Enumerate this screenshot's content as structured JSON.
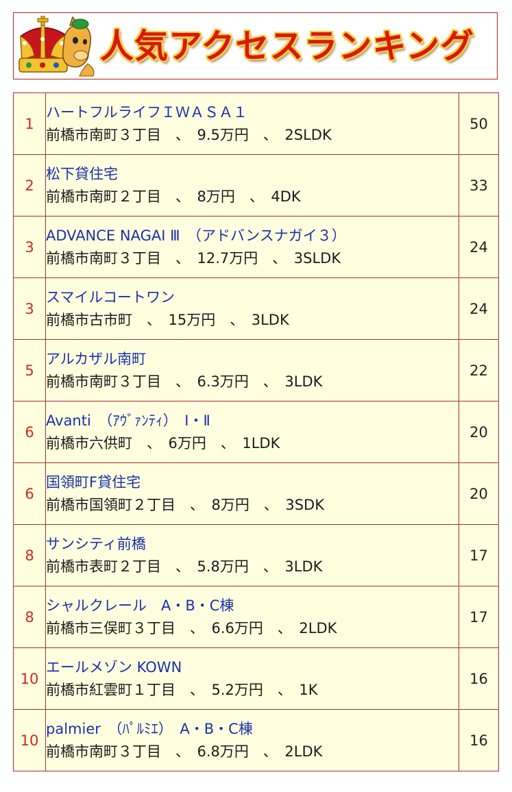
{
  "banner": {
    "title": "人気アクセスランキング",
    "mascot_icon": "crowned-mascot-icon",
    "title_color": "#d81810",
    "title_outline": "#f6d23a"
  },
  "table": {
    "border_color": "#a0322a",
    "background": "#ffffe0",
    "rank_color": "#cc2a1c",
    "name_color": "#1a30a8",
    "rows": [
      {
        "rank": "1",
        "name": "ハートフルライフＩＷＡＳＡ１",
        "detail": "前橋市南町３丁目　、　9.5万円　、　2SLDK",
        "count": "50"
      },
      {
        "rank": "2",
        "name": "松下貸住宅",
        "detail": "前橋市南町２丁目　、　8万円　、　4DK",
        "count": "33"
      },
      {
        "rank": "3",
        "name": "ADVANCE NAGAI Ⅲ　（アドバンスナガイ３）",
        "detail": "前橋市南町３丁目　、　12.7万円　、　3SLDK",
        "count": "24"
      },
      {
        "rank": "3",
        "name": "スマイルコートワン",
        "detail": "前橋市古市町　、　15万円　、　3LDK",
        "count": "24"
      },
      {
        "rank": "5",
        "name": "アルカザル南町",
        "detail": "前橋市南町３丁目　、　6.3万円　、　3LDK",
        "count": "22"
      },
      {
        "rank": "6",
        "name": "Avanti　（ｱｳﾞｧﾝﾃｨ）　Ⅰ・Ⅱ",
        "detail": "前橋市六供町　、　6万円　、　1LDK",
        "count": "20"
      },
      {
        "rank": "6",
        "name": "国領町F貸住宅",
        "detail": "前橋市国領町２丁目　、　8万円　、　3SDK",
        "count": "20"
      },
      {
        "rank": "8",
        "name": "サンシティ前橋",
        "detail": "前橋市表町２丁目　、　5.8万円　、　3LDK",
        "count": "17"
      },
      {
        "rank": "8",
        "name": "シャルクレール　A・B・C棟",
        "detail": "前橋市三俣町３丁目　、　6.6万円　、　2LDK",
        "count": "17"
      },
      {
        "rank": "10",
        "name": "エールメゾン KOWN",
        "detail": "前橋市紅雲町１丁目　、　5.2万円　、　1K",
        "count": "16"
      },
      {
        "rank": "10",
        "name": "palmier　（ﾊﾟﾙﾐｴ）　A・B・C棟",
        "detail": "前橋市南町３丁目　、　6.8万円　、　2LDK",
        "count": "16"
      }
    ]
  }
}
